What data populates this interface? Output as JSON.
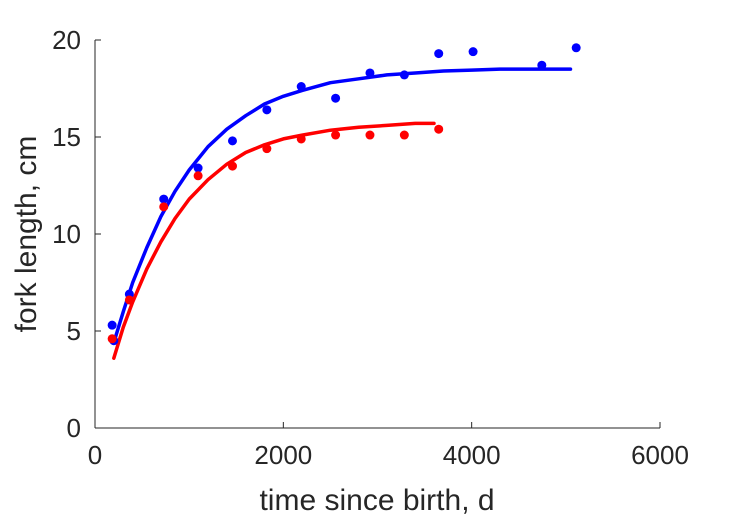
{
  "chart_data": {
    "type": "scatter",
    "title": "",
    "xlabel": "time since birth, d",
    "ylabel": "fork length, cm",
    "xlim": [
      0,
      6000
    ],
    "ylim": [
      0,
      20
    ],
    "xticks": [
      0,
      2000,
      4000,
      6000
    ],
    "yticks": [
      0,
      5,
      10,
      15,
      20
    ],
    "xtick_labels": [
      "0",
      "2000",
      "4000",
      "6000"
    ],
    "ytick_labels": [
      "0",
      "5",
      "10",
      "15",
      "20"
    ],
    "grid": false,
    "legend": "none",
    "series": [
      {
        "color": "#0000ff",
        "points_x": [
          182,
          200,
          365,
          730,
          1095,
          1460,
          1825,
          2190,
          2555,
          2920,
          3285,
          3650,
          4015,
          4745,
          5110
        ],
        "points_y": [
          5.3,
          4.5,
          6.9,
          11.8,
          13.4,
          14.8,
          16.4,
          17.6,
          17.0,
          18.3,
          18.2,
          19.3,
          19.4,
          18.7,
          19.6
        ],
        "fit_x": [
          200,
          300,
          400,
          550,
          700,
          850,
          1000,
          1200,
          1400,
          1600,
          1800,
          2000,
          2200,
          2500,
          2800,
          3100,
          3400,
          3700,
          4000,
          4300,
          4600,
          4900,
          5050
        ],
        "fit_y": [
          4.4,
          6.0,
          7.5,
          9.3,
          10.9,
          12.2,
          13.3,
          14.5,
          15.4,
          16.1,
          16.7,
          17.1,
          17.4,
          17.8,
          18.0,
          18.2,
          18.3,
          18.4,
          18.45,
          18.5,
          18.5,
          18.5,
          18.5
        ]
      },
      {
        "color": "#ff0000",
        "points_x": [
          182,
          365,
          730,
          1095,
          1460,
          1825,
          2190,
          2555,
          2920,
          3285,
          3650
        ],
        "points_y": [
          4.6,
          6.6,
          11.4,
          13.0,
          13.5,
          14.4,
          14.9,
          15.1,
          15.1,
          15.1,
          15.4
        ],
        "fit_x": [
          200,
          300,
          400,
          550,
          700,
          850,
          1000,
          1200,
          1400,
          1600,
          1800,
          2000,
          2200,
          2500,
          2800,
          3100,
          3400,
          3600
        ],
        "fit_y": [
          3.6,
          5.2,
          6.5,
          8.2,
          9.6,
          10.8,
          11.8,
          12.8,
          13.6,
          14.2,
          14.6,
          14.9,
          15.1,
          15.35,
          15.5,
          15.6,
          15.7,
          15.7
        ]
      }
    ]
  }
}
